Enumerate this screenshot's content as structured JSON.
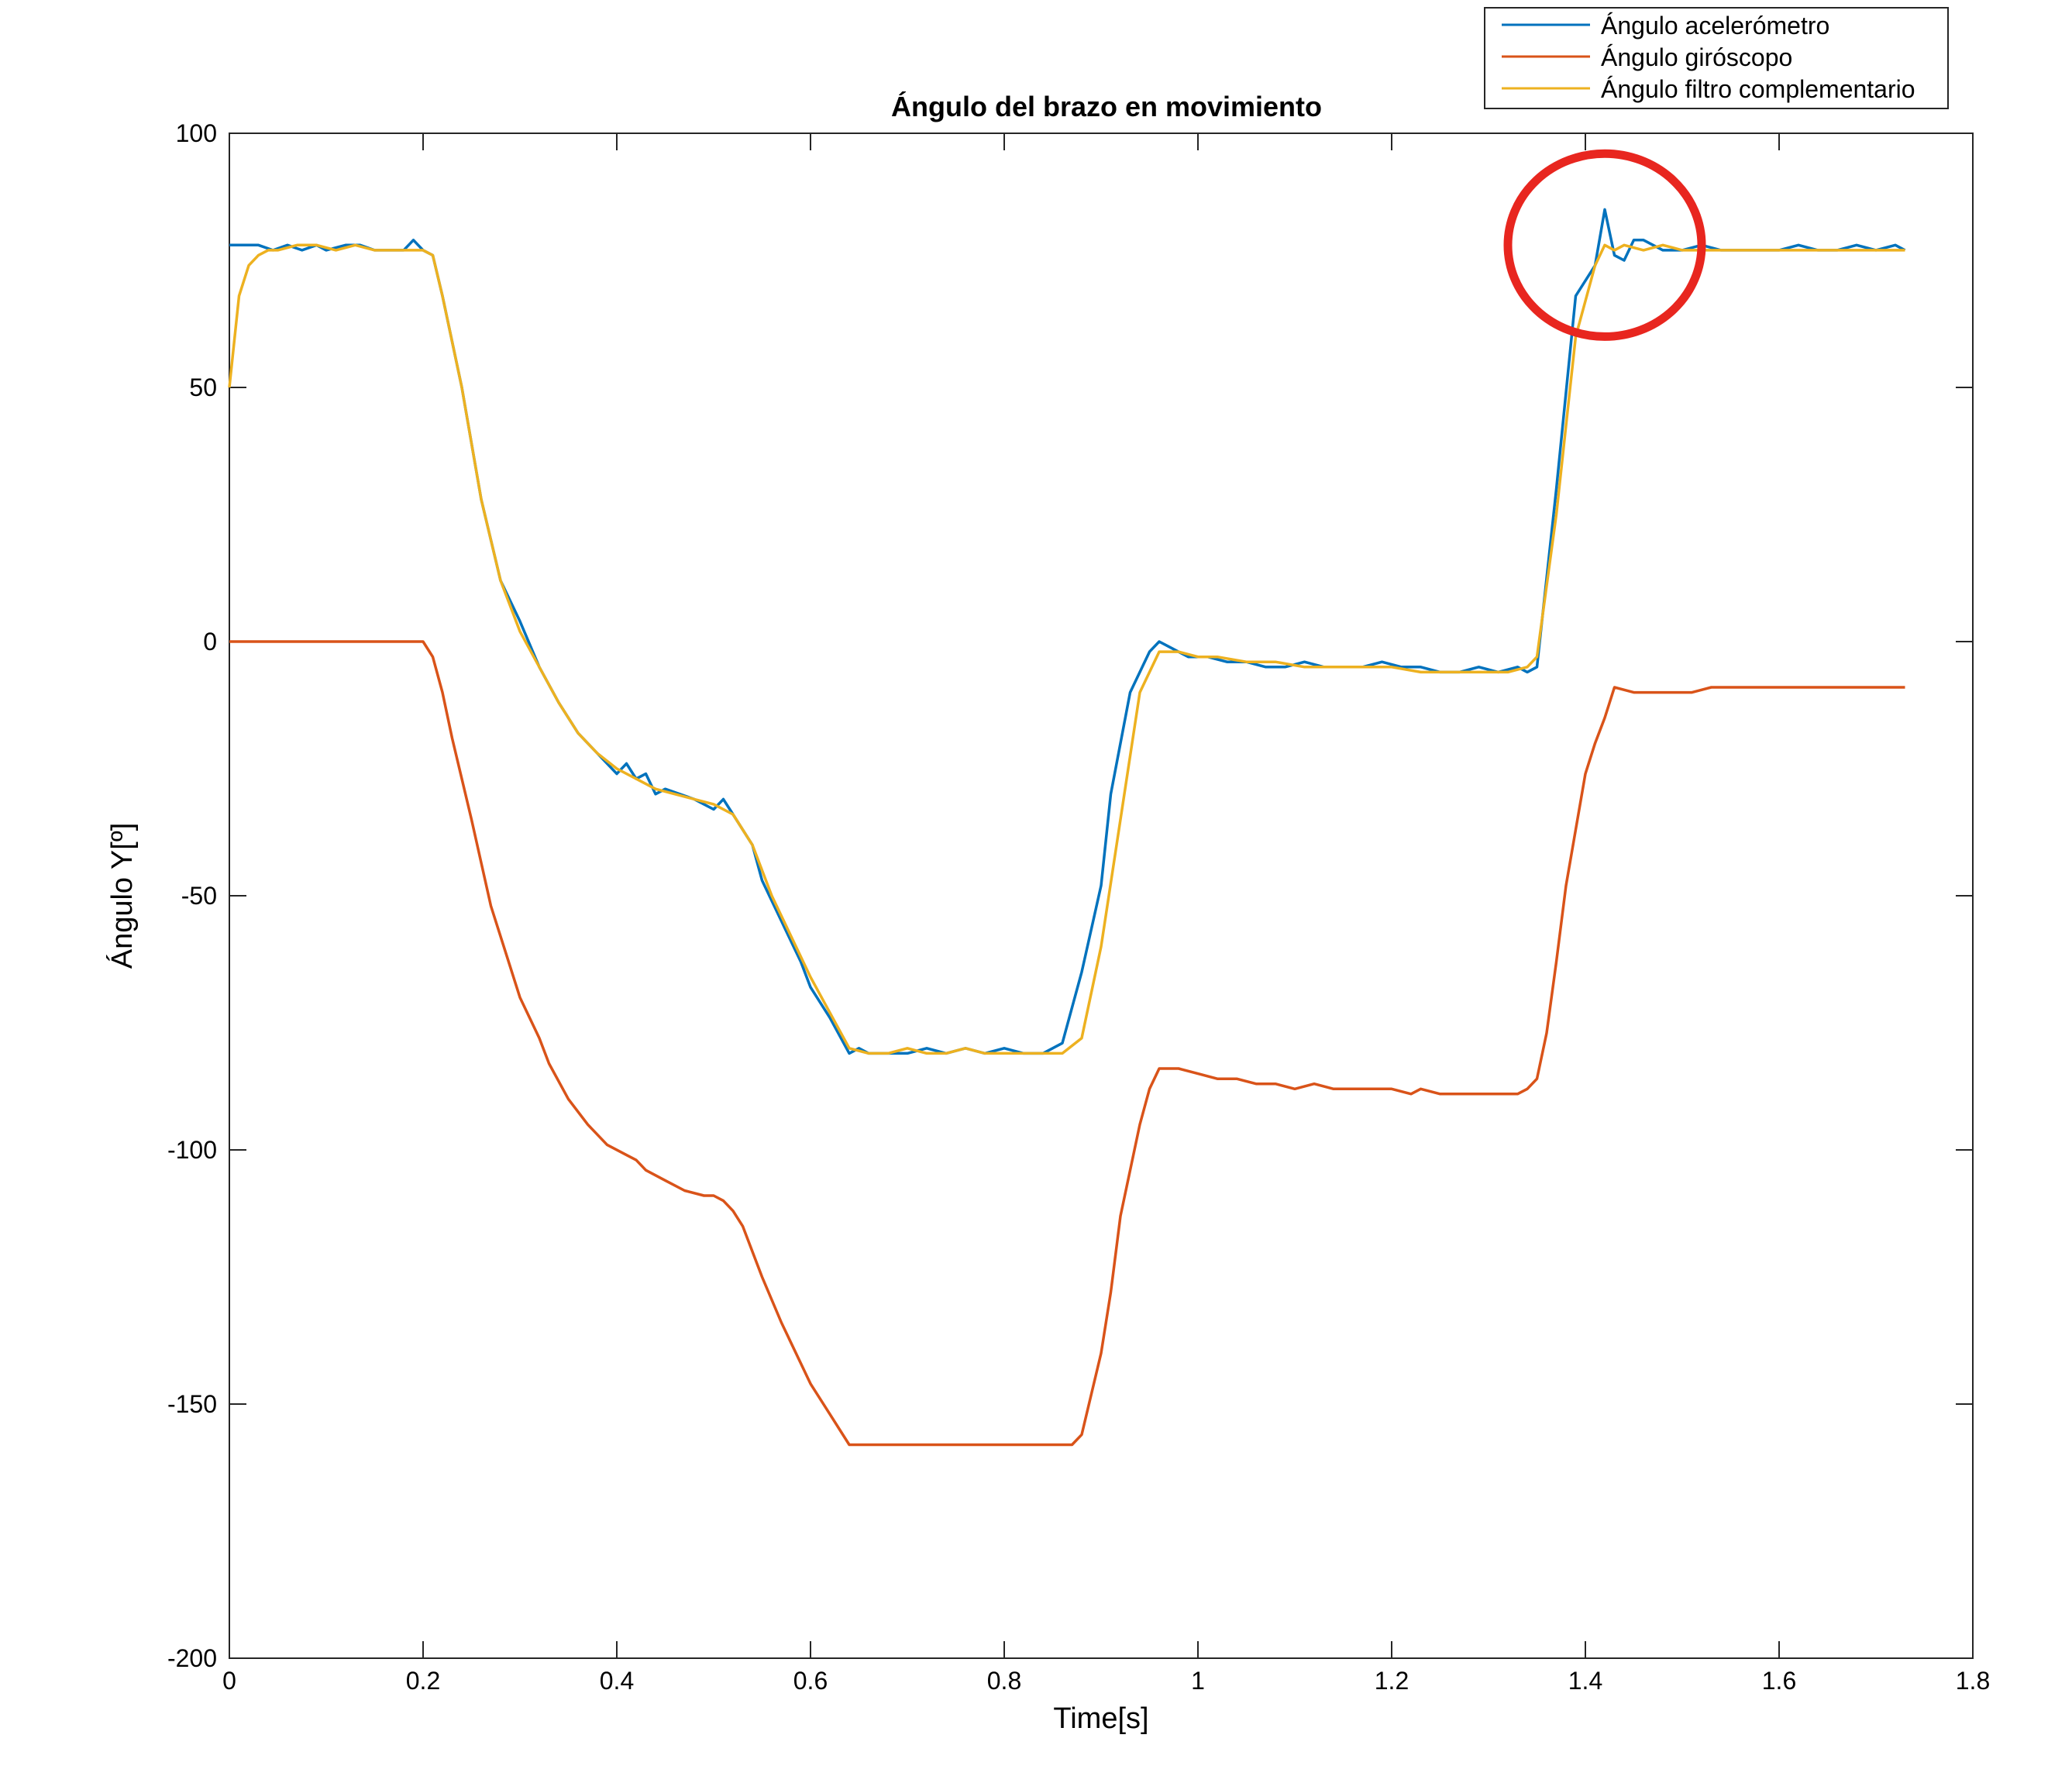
{
  "chart_data": {
    "type": "line",
    "title": "Ángulo del brazo en movimiento",
    "xlabel": "Time[s]",
    "ylabel": "Ángulo Y[º]",
    "xlim": [
      0,
      1.8
    ],
    "ylim": [
      -200,
      100
    ],
    "xticks": [
      0,
      0.2,
      0.4,
      0.6,
      0.8,
      1,
      1.2,
      1.4,
      1.6,
      1.8
    ],
    "xtick_labels": [
      "0",
      "0.2",
      "0.4",
      "0.6",
      "0.8",
      "1",
      "1.2",
      "1.4",
      "1.6",
      "1.8"
    ],
    "yticks": [
      100,
      50,
      0,
      -50,
      -100,
      -150,
      -200
    ],
    "ytick_labels": [
      "100",
      "50",
      "0",
      "-50",
      "-100",
      "-150",
      "-200"
    ],
    "grid": false,
    "legend_position": "top-right",
    "annotation": {
      "type": "circle",
      "color": "#e8261f",
      "center": [
        1.42,
        78
      ],
      "radius_x": 0.1,
      "radius_y": 18
    },
    "series": [
      {
        "name": "Ángulo acelerómetro",
        "color": "#0072bd",
        "x": [
          0,
          0.03,
          0.045,
          0.06,
          0.075,
          0.09,
          0.1,
          0.12,
          0.135,
          0.15,
          0.165,
          0.18,
          0.19,
          0.2,
          0.21,
          0.22,
          0.24,
          0.26,
          0.28,
          0.3,
          0.32,
          0.34,
          0.36,
          0.38,
          0.4,
          0.41,
          0.42,
          0.43,
          0.44,
          0.45,
          0.48,
          0.5,
          0.51,
          0.52,
          0.54,
          0.55,
          0.57,
          0.59,
          0.6,
          0.62,
          0.64,
          0.65,
          0.66,
          0.68,
          0.7,
          0.72,
          0.74,
          0.76,
          0.78,
          0.8,
          0.82,
          0.84,
          0.86,
          0.88,
          0.9,
          0.91,
          0.93,
          0.95,
          0.96,
          0.97,
          0.99,
          1.01,
          1.03,
          1.05,
          1.07,
          1.09,
          1.11,
          1.13,
          1.15,
          1.17,
          1.19,
          1.21,
          1.23,
          1.25,
          1.27,
          1.29,
          1.31,
          1.33,
          1.34,
          1.35,
          1.37,
          1.39,
          1.41,
          1.42,
          1.43,
          1.44,
          1.45,
          1.46,
          1.48,
          1.5,
          1.52,
          1.54,
          1.56,
          1.58,
          1.6,
          1.62,
          1.64,
          1.66,
          1.68,
          1.7,
          1.72,
          1.73
        ],
        "y": [
          78,
          78,
          77,
          78,
          77,
          78,
          77,
          78,
          78,
          77,
          77,
          77,
          79,
          77,
          76,
          68,
          50,
          28,
          12,
          4,
          -5,
          -12,
          -18,
          -22,
          -26,
          -24,
          -27,
          -26,
          -30,
          -29,
          -31,
          -33,
          -31,
          -34,
          -40,
          -47,
          -55,
          -63,
          -68,
          -74,
          -81,
          -80,
          -81,
          -81,
          -81,
          -80,
          -81,
          -80,
          -81,
          -80,
          -81,
          -81,
          -79,
          -65,
          -48,
          -30,
          -10,
          -2,
          0,
          -1,
          -3,
          -3,
          -4,
          -4,
          -5,
          -5,
          -4,
          -5,
          -5,
          -5,
          -4,
          -5,
          -5,
          -6,
          -6,
          -5,
          -6,
          -5,
          -6,
          -5,
          30,
          68,
          74,
          85,
          76,
          75,
          79,
          79,
          77,
          77,
          78,
          77,
          77,
          77,
          77,
          78,
          77,
          77,
          78,
          77,
          78,
          77
        ]
      },
      {
        "name": "Ángulo giróscopo",
        "color": "#d95319",
        "x": [
          0,
          0.2,
          0.21,
          0.22,
          0.23,
          0.25,
          0.27,
          0.29,
          0.3,
          0.32,
          0.33,
          0.35,
          0.37,
          0.39,
          0.41,
          0.42,
          0.43,
          0.45,
          0.47,
          0.49,
          0.5,
          0.51,
          0.52,
          0.53,
          0.55,
          0.57,
          0.59,
          0.6,
          0.62,
          0.64,
          0.87,
          0.88,
          0.89,
          0.9,
          0.91,
          0.92,
          0.94,
          0.95,
          0.96,
          0.98,
          1.0,
          1.02,
          1.04,
          1.06,
          1.08,
          1.1,
          1.12,
          1.14,
          1.16,
          1.18,
          1.2,
          1.22,
          1.23,
          1.25,
          1.27,
          1.29,
          1.31,
          1.33,
          1.34,
          1.35,
          1.36,
          1.37,
          1.38,
          1.4,
          1.41,
          1.42,
          1.43,
          1.45,
          1.47,
          1.49,
          1.51,
          1.53,
          1.6,
          1.65,
          1.7,
          1.73
        ],
        "y": [
          0,
          0,
          -3,
          -10,
          -19,
          -35,
          -52,
          -64,
          -70,
          -78,
          -83,
          -90,
          -95,
          -99,
          -101,
          -102,
          -104,
          -106,
          -108,
          -109,
          -109,
          -110,
          -112,
          -115,
          -125,
          -134,
          -142,
          -146,
          -152,
          -158,
          -158,
          -156,
          -148,
          -140,
          -128,
          -113,
          -95,
          -88,
          -84,
          -84,
          -85,
          -86,
          -86,
          -87,
          -87,
          -88,
          -87,
          -88,
          -88,
          -88,
          -88,
          -89,
          -88,
          -89,
          -89,
          -89,
          -89,
          -89,
          -88,
          -86,
          -77,
          -63,
          -48,
          -26,
          -20,
          -15,
          -9,
          -10,
          -10,
          -10,
          -10,
          -9,
          -9,
          -9,
          -9,
          -9
        ]
      },
      {
        "name": "Ángulo filtro complementario",
        "color": "#edb120",
        "x": [
          0,
          0.01,
          0.02,
          0.03,
          0.04,
          0.05,
          0.07,
          0.09,
          0.11,
          0.13,
          0.15,
          0.17,
          0.19,
          0.2,
          0.21,
          0.22,
          0.24,
          0.26,
          0.28,
          0.3,
          0.32,
          0.34,
          0.36,
          0.38,
          0.4,
          0.42,
          0.44,
          0.46,
          0.48,
          0.5,
          0.52,
          0.54,
          0.56,
          0.58,
          0.6,
          0.62,
          0.64,
          0.66,
          0.68,
          0.7,
          0.72,
          0.74,
          0.76,
          0.78,
          0.8,
          0.82,
          0.84,
          0.86,
          0.88,
          0.9,
          0.92,
          0.94,
          0.96,
          0.98,
          1.0,
          1.02,
          1.05,
          1.08,
          1.11,
          1.14,
          1.17,
          1.2,
          1.23,
          1.26,
          1.29,
          1.32,
          1.34,
          1.35,
          1.37,
          1.39,
          1.41,
          1.42,
          1.43,
          1.44,
          1.46,
          1.48,
          1.5,
          1.55,
          1.6,
          1.65,
          1.7,
          1.73
        ],
        "y": [
          50,
          68,
          74,
          76,
          77,
          77,
          78,
          78,
          77,
          78,
          77,
          77,
          77,
          77,
          76,
          68,
          50,
          28,
          12,
          2,
          -5,
          -12,
          -18,
          -22,
          -25,
          -27,
          -29,
          -30,
          -31,
          -32,
          -34,
          -40,
          -50,
          -58,
          -66,
          -73,
          -80,
          -81,
          -81,
          -80,
          -81,
          -81,
          -80,
          -81,
          -81,
          -81,
          -81,
          -81,
          -78,
          -60,
          -35,
          -10,
          -2,
          -2,
          -3,
          -3,
          -4,
          -4,
          -5,
          -5,
          -5,
          -5,
          -6,
          -6,
          -6,
          -6,
          -5,
          -3,
          25,
          60,
          74,
          78,
          77,
          78,
          77,
          78,
          77,
          77,
          77,
          77,
          77,
          77
        ]
      }
    ]
  }
}
